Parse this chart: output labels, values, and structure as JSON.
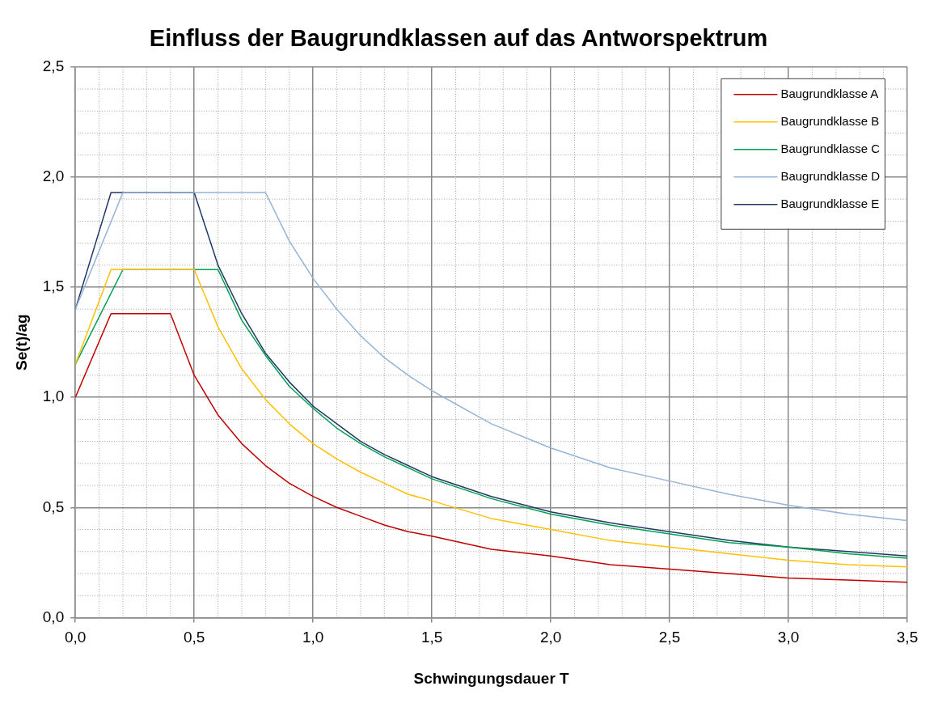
{
  "chart_data": {
    "type": "line",
    "title": "Einfluss der Baugrundklassen auf das Antworspektrum",
    "xlabel": "Schwingungsdauer T",
    "ylabel": "Se(t)/ag",
    "xlim": [
      0,
      3.5
    ],
    "xticks": [
      {
        "value": 0,
        "label": "0,0"
      },
      {
        "value": 0.5,
        "label": "0,5"
      },
      {
        "value": 1,
        "label": "1,0"
      },
      {
        "value": 1.5,
        "label": "1,5"
      },
      {
        "value": 2,
        "label": "2,0"
      },
      {
        "value": 2.5,
        "label": "2,5"
      },
      {
        "value": 3,
        "label": "3,0"
      },
      {
        "value": 3.5,
        "label": "3,5"
      }
    ],
    "ylim": [
      0,
      2.5
    ],
    "yticks": [
      {
        "value": 0,
        "label": "0,0"
      },
      {
        "value": 0.5,
        "label": "0,5"
      },
      {
        "value": 1,
        "label": "1,0"
      },
      {
        "value": 1.5,
        "label": "1,5"
      },
      {
        "value": 2,
        "label": "2,0"
      },
      {
        "value": 2.5,
        "label": "2,5"
      }
    ],
    "grid": true,
    "legend": "top right",
    "marker": "none",
    "line_style": "solid",
    "series": [
      {
        "name": "Baugrundklasse A",
        "color": "#c00000",
        "x": [
          0,
          0.15,
          0.4,
          0.5,
          0.6,
          0.7,
          0.8,
          0.9,
          1.0,
          1.1,
          1.2,
          1.3,
          1.4,
          1.5,
          1.75,
          2.0,
          2.25,
          2.5,
          2.75,
          3.0,
          3.25,
          3.5
        ],
        "values": [
          1.0,
          1.38,
          1.38,
          1.1,
          0.92,
          0.79,
          0.69,
          0.61,
          0.55,
          0.5,
          0.46,
          0.42,
          0.39,
          0.37,
          0.31,
          0.28,
          0.24,
          0.22,
          0.2,
          0.18,
          0.17,
          0.16
        ]
      },
      {
        "name": "Baugrundklasse B",
        "color": "#ffc000",
        "x": [
          0,
          0.15,
          0.5,
          0.6,
          0.7,
          0.8,
          0.9,
          1.0,
          1.1,
          1.2,
          1.3,
          1.4,
          1.5,
          1.75,
          2.0,
          2.25,
          2.5,
          2.75,
          3.0,
          3.25,
          3.5
        ],
        "values": [
          1.15,
          1.58,
          1.58,
          1.32,
          1.13,
          0.99,
          0.88,
          0.79,
          0.72,
          0.66,
          0.61,
          0.56,
          0.53,
          0.45,
          0.4,
          0.35,
          0.32,
          0.29,
          0.26,
          0.24,
          0.23
        ]
      },
      {
        "name": "Baugrundklasse C",
        "color": "#00a050",
        "x": [
          0,
          0.2,
          0.6,
          0.7,
          0.8,
          0.9,
          1.0,
          1.1,
          1.2,
          1.3,
          1.4,
          1.5,
          1.75,
          2.0,
          2.25,
          2.5,
          2.75,
          3.0,
          3.25,
          3.5
        ],
        "values": [
          1.15,
          1.58,
          1.58,
          1.35,
          1.19,
          1.05,
          0.95,
          0.86,
          0.79,
          0.73,
          0.68,
          0.63,
          0.54,
          0.47,
          0.42,
          0.38,
          0.34,
          0.32,
          0.29,
          0.27
        ]
      },
      {
        "name": "Baugrundklasse D",
        "color": "#95b3d7",
        "x": [
          0,
          0.2,
          0.8,
          0.9,
          1.0,
          1.1,
          1.2,
          1.3,
          1.4,
          1.5,
          1.75,
          2.0,
          2.25,
          2.5,
          2.75,
          3.0,
          3.25,
          3.5
        ],
        "values": [
          1.4,
          1.93,
          1.93,
          1.71,
          1.54,
          1.4,
          1.28,
          1.18,
          1.1,
          1.03,
          0.88,
          0.77,
          0.68,
          0.62,
          0.56,
          0.51,
          0.47,
          0.44
        ]
      },
      {
        "name": "Baugrundklasse E",
        "color": "#1f3864",
        "x": [
          0,
          0.15,
          0.5,
          0.6,
          0.7,
          0.8,
          0.9,
          1.0,
          1.1,
          1.2,
          1.3,
          1.4,
          1.5,
          1.75,
          2.0,
          2.25,
          2.5,
          2.75,
          3.0,
          3.25,
          3.5
        ],
        "values": [
          1.4,
          1.93,
          1.93,
          1.6,
          1.38,
          1.2,
          1.07,
          0.96,
          0.88,
          0.8,
          0.74,
          0.69,
          0.64,
          0.55,
          0.48,
          0.43,
          0.39,
          0.35,
          0.32,
          0.3,
          0.28
        ]
      }
    ]
  }
}
